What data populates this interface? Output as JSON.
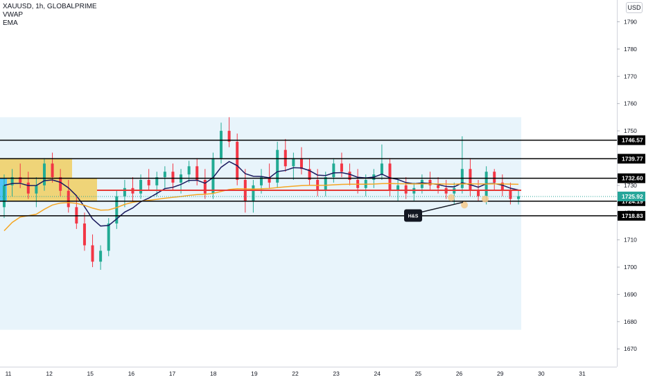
{
  "header": {
    "symbol": "XAUUSD, 1h, GLOBALPRIME",
    "indicator_1": "VWAP",
    "indicator_2": "EMA"
  },
  "currency": "USD",
  "colors": {
    "up_candle": "#22ab94",
    "down_candle": "#f23645",
    "ema": "#1a1a5e",
    "vwap": "#f5a623",
    "red_level": "#e53935",
    "zone_blue": "#e8f4fb",
    "zone_orange": "#f2c94c",
    "zone_cyan": "#4fc3f7",
    "current_price_badge": "#26a69a",
    "annotation_dot": "#f5c88a"
  },
  "chart_data": {
    "type": "candlestick",
    "y_axis_ticks": [
      1670,
      1680,
      1690,
      1700,
      1710,
      1720,
      1730,
      1740,
      1750,
      1760,
      1770,
      1780,
      1790
    ],
    "ylim": [
      1666,
      1798
    ],
    "x_axis_labels": [
      "11",
      "12",
      "15",
      "16",
      "17",
      "18",
      "19",
      "22",
      "23",
      "24",
      "25",
      "26",
      "29",
      "30",
      "31"
    ],
    "price_levels": [
      {
        "label": "1746.57",
        "value": 1746.57
      },
      {
        "label": "1739.77",
        "value": 1739.77
      },
      {
        "label": "1732.60",
        "value": 1732.6
      },
      {
        "label": "1724.19",
        "value": 1724.19
      },
      {
        "label": "1718.83",
        "value": 1718.83
      }
    ],
    "red_level": 1728.2,
    "current_price": {
      "label": "1725.92",
      "value": 1725.92
    },
    "annotation": {
      "text": "H&S"
    },
    "ohlc": [
      [
        1722,
        1734,
        1718,
        1730
      ],
      [
        1730,
        1736,
        1726,
        1733
      ],
      [
        1733,
        1738,
        1729,
        1731
      ],
      [
        1731,
        1735,
        1725,
        1727
      ],
      [
        1727,
        1733,
        1722,
        1730
      ],
      [
        1730,
        1740,
        1728,
        1738
      ],
      [
        1738,
        1742,
        1731,
        1733
      ],
      [
        1733,
        1736,
        1726,
        1728
      ],
      [
        1728,
        1732,
        1720,
        1722
      ],
      [
        1722,
        1726,
        1714,
        1716
      ],
      [
        1716,
        1720,
        1706,
        1708
      ],
      [
        1708,
        1712,
        1700,
        1702
      ],
      [
        1702,
        1708,
        1699,
        1706
      ],
      [
        1706,
        1718,
        1704,
        1716
      ],
      [
        1716,
        1728,
        1714,
        1726
      ],
      [
        1726,
        1732,
        1722,
        1729
      ],
      [
        1729,
        1733,
        1724,
        1727
      ],
      [
        1727,
        1734,
        1725,
        1732
      ],
      [
        1732,
        1736,
        1728,
        1730
      ],
      [
        1730,
        1735,
        1726,
        1733
      ],
      [
        1733,
        1737,
        1729,
        1735
      ],
      [
        1735,
        1738,
        1728,
        1731
      ],
      [
        1731,
        1736,
        1727,
        1734
      ],
      [
        1734,
        1739,
        1731,
        1737
      ],
      [
        1737,
        1740,
        1730,
        1732
      ],
      [
        1732,
        1736,
        1725,
        1727
      ],
      [
        1727,
        1742,
        1725,
        1740
      ],
      [
        1740,
        1753,
        1738,
        1750
      ],
      [
        1750,
        1755,
        1744,
        1746
      ],
      [
        1746,
        1749,
        1730,
        1732
      ],
      [
        1732,
        1736,
        1720,
        1724
      ],
      [
        1724,
        1732,
        1720,
        1730
      ],
      [
        1730,
        1736,
        1727,
        1733
      ],
      [
        1733,
        1738,
        1729,
        1731
      ],
      [
        1731,
        1746,
        1729,
        1743
      ],
      [
        1743,
        1747,
        1735,
        1737
      ],
      [
        1737,
        1742,
        1732,
        1740
      ],
      [
        1740,
        1744,
        1734,
        1736
      ],
      [
        1736,
        1740,
        1730,
        1732
      ],
      [
        1732,
        1736,
        1726,
        1728
      ],
      [
        1728,
        1735,
        1726,
        1733
      ],
      [
        1733,
        1740,
        1731,
        1738
      ],
      [
        1738,
        1742,
        1733,
        1735
      ],
      [
        1735,
        1738,
        1730,
        1732
      ],
      [
        1732,
        1736,
        1727,
        1729
      ],
      [
        1729,
        1734,
        1726,
        1732
      ],
      [
        1732,
        1736,
        1729,
        1734
      ],
      [
        1734,
        1745,
        1732,
        1738
      ],
      [
        1738,
        1740,
        1726,
        1728
      ],
      [
        1728,
        1732,
        1724,
        1730
      ],
      [
        1730,
        1733,
        1725,
        1727
      ],
      [
        1727,
        1731,
        1724,
        1729
      ],
      [
        1729,
        1734,
        1727,
        1732
      ],
      [
        1732,
        1735,
        1728,
        1730
      ],
      [
        1730,
        1733,
        1727,
        1729
      ],
      [
        1729,
        1732,
        1725,
        1727
      ],
      [
        1727,
        1731,
        1723,
        1729
      ],
      [
        1729,
        1748,
        1727,
        1736
      ],
      [
        1736,
        1740,
        1726,
        1728
      ],
      [
        1728,
        1732,
        1724,
        1726
      ],
      [
        1726,
        1737,
        1723,
        1735
      ],
      [
        1735,
        1736,
        1728,
        1731
      ],
      [
        1731,
        1734,
        1726,
        1728
      ],
      [
        1728,
        1731,
        1723,
        1725
      ],
      [
        1725,
        1728,
        1723,
        1726
      ]
    ]
  }
}
